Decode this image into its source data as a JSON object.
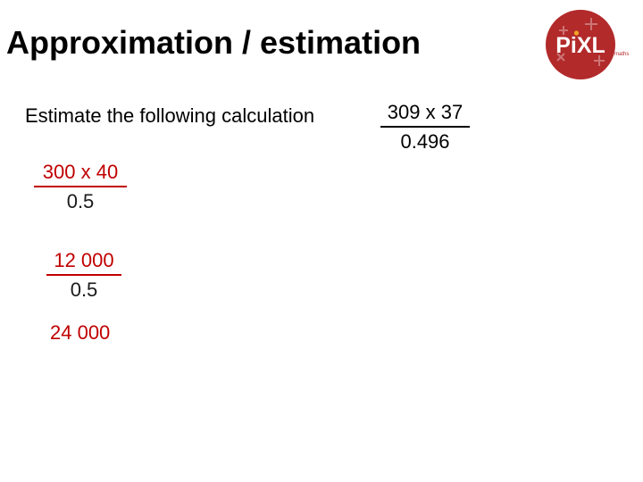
{
  "slide": {
    "title": "Approximation / estimation",
    "logo_text": "PiXL",
    "logo_subtext": "maths"
  },
  "question": {
    "prompt": "Estimate the following calculation",
    "numerator": "309 x 37",
    "denominator": "0.496"
  },
  "working": {
    "step1_numerator": "300 x 40",
    "step1_denominator": "0.5",
    "step2_numerator": "12 000",
    "step2_denominator": "0.5",
    "answer": "24 000"
  },
  "colors": {
    "working_accent": "#c00000",
    "logo_red": "#b22a2a"
  }
}
